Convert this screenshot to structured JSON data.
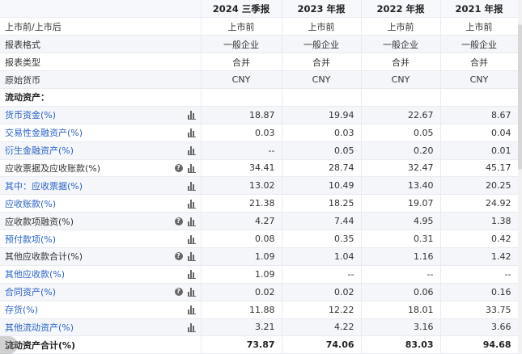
{
  "header": {
    "corner": "",
    "periods": [
      "2024 三季报",
      "2023 年报",
      "2022 年报",
      "2021 年报"
    ]
  },
  "rows": [
    {
      "label": "上市前/上市后",
      "style": "plain",
      "indent": 0,
      "align": "center",
      "icons": [],
      "values": [
        "上市前",
        "上市前",
        "上市前",
        "上市前"
      ]
    },
    {
      "label": "报表格式",
      "style": "plain",
      "indent": 0,
      "align": "center",
      "icons": [],
      "values": [
        "一般企业",
        "一般企业",
        "一般企业",
        "一般企业"
      ]
    },
    {
      "label": "报表类型",
      "style": "plain",
      "indent": 0,
      "align": "center",
      "icons": [],
      "values": [
        "合并",
        "合并",
        "合并",
        "合并"
      ]
    },
    {
      "label": "原始货币",
      "style": "plain",
      "indent": 0,
      "align": "center",
      "icons": [],
      "values": [
        "CNY",
        "CNY",
        "CNY",
        "CNY"
      ]
    },
    {
      "label": "流动资产：",
      "style": "bold",
      "indent": 0,
      "align": "right",
      "icons": [],
      "values": [
        "",
        "",
        "",
        ""
      ]
    },
    {
      "label": "货币资金(%)",
      "style": "link",
      "indent": 1,
      "align": "right",
      "icons": [
        "bar"
      ],
      "values": [
        "18.87",
        "19.94",
        "22.67",
        "8.67"
      ]
    },
    {
      "label": "交易性金融资产(%)",
      "style": "link",
      "indent": 1,
      "align": "right",
      "icons": [
        "bar"
      ],
      "values": [
        "0.03",
        "0.03",
        "0.05",
        "0.04"
      ]
    },
    {
      "label": "衍生金融资产(%)",
      "style": "link",
      "indent": 1,
      "align": "right",
      "icons": [
        "bar"
      ],
      "values": [
        "--",
        "0.05",
        "0.20",
        "0.01"
      ]
    },
    {
      "label": "应收票据及应收账款(%)",
      "style": "plain",
      "indent": 1,
      "align": "right",
      "icons": [
        "help",
        "bar"
      ],
      "values": [
        "34.41",
        "28.74",
        "32.47",
        "45.17"
      ]
    },
    {
      "label": "其中：应收票据(%)",
      "style": "link",
      "indent": 1,
      "align": "right",
      "icons": [
        "bar"
      ],
      "values": [
        "13.02",
        "10.49",
        "13.40",
        "20.25"
      ]
    },
    {
      "label": "应收账款(%)",
      "style": "link",
      "indent": 2,
      "align": "right",
      "icons": [
        "bar"
      ],
      "values": [
        "21.38",
        "18.25",
        "19.07",
        "24.92"
      ]
    },
    {
      "label": "应收款项融资(%)",
      "style": "plain",
      "indent": 1,
      "align": "right",
      "icons": [
        "help",
        "bar"
      ],
      "values": [
        "4.27",
        "7.44",
        "4.95",
        "1.38"
      ]
    },
    {
      "label": "预付款项(%)",
      "style": "link",
      "indent": 1,
      "align": "right",
      "icons": [
        "bar"
      ],
      "values": [
        "0.08",
        "0.35",
        "0.31",
        "0.42"
      ]
    },
    {
      "label": "其他应收款合计(%)",
      "style": "plain",
      "indent": 1,
      "align": "right",
      "icons": [
        "help",
        "bar"
      ],
      "values": [
        "1.09",
        "1.04",
        "1.16",
        "1.42"
      ]
    },
    {
      "label": "其他应收款(%)",
      "style": "link",
      "indent": 2,
      "align": "right",
      "icons": [
        "bar"
      ],
      "values": [
        "1.09",
        "--",
        "--",
        "--"
      ]
    },
    {
      "label": "合同资产(%)",
      "style": "link",
      "indent": 1,
      "align": "right",
      "icons": [
        "help",
        "bar"
      ],
      "values": [
        "0.02",
        "0.02",
        "0.06",
        "0.16"
      ]
    },
    {
      "label": "存货(%)",
      "style": "link",
      "indent": 1,
      "align": "right",
      "icons": [
        "bar"
      ],
      "values": [
        "11.88",
        "12.22",
        "18.01",
        "33.75"
      ]
    },
    {
      "label": "其他流动资产(%)",
      "style": "link",
      "indent": 1,
      "align": "right",
      "icons": [
        "bar"
      ],
      "values": [
        "3.21",
        "4.22",
        "3.16",
        "3.66"
      ]
    },
    {
      "label": "流动资产合计(%)",
      "style": "bold",
      "indent": 0,
      "align": "right",
      "icons": [],
      "total": true,
      "values": [
        "73.87",
        "74.06",
        "83.03",
        "94.68"
      ]
    }
  ],
  "icon_names": {
    "bar": "bar-chart-icon",
    "help": "help-icon"
  }
}
